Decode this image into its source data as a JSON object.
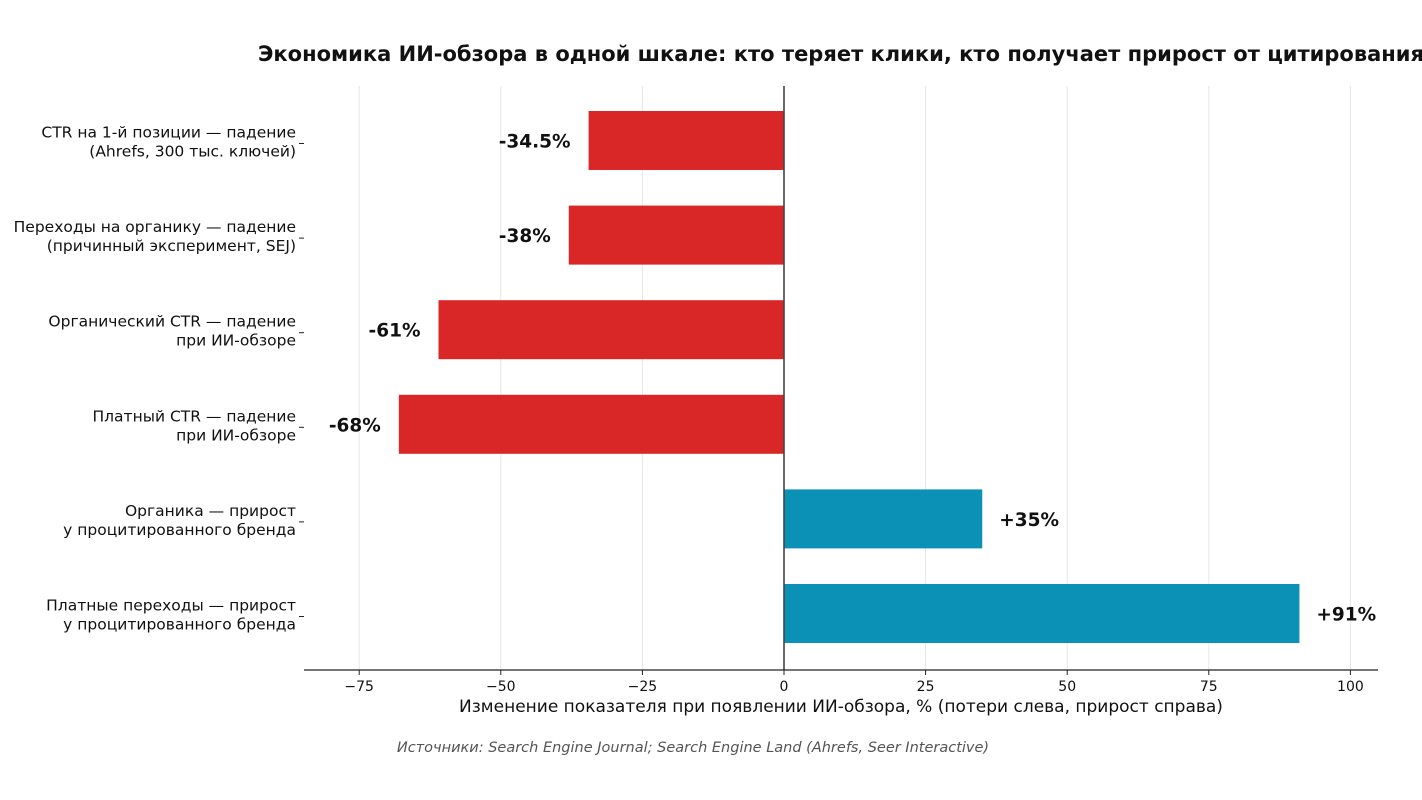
{
  "chart_data": {
    "type": "bar",
    "orientation": "horizontal",
    "title": "Экономика ИИ-обзора в одной шкале: кто теряет клики, кто получает прирост от цитирования",
    "xlabel": "Изменение показателя при появлении ИИ-обзора, %  (потери слева, прирост справа)",
    "ylabel": "",
    "source": "Источники: Search Engine Journal; Search Engine Land (Ahrefs, Seer Interactive)",
    "xlim": [
      -85,
      105
    ],
    "xticks": [
      -75,
      -50,
      -25,
      0,
      25,
      50,
      75,
      100
    ],
    "xtick_labels": [
      "−75",
      "−50",
      "−25",
      "0",
      "25",
      "50",
      "75",
      "100"
    ],
    "grid": "vertical",
    "categories": [
      [
        "CTR на 1-й позиции — падение",
        "(Ahrefs, 300 тыс. ключей)"
      ],
      [
        "Переходы на органику — падение",
        "(причинный эксперимент, SEJ)"
      ],
      [
        "Органический CTR — падение",
        "при ИИ-обзоре"
      ],
      [
        "Платный CTR — падение",
        "при ИИ-обзоре"
      ],
      [
        "Органика — прирост",
        "у процитированного бренда"
      ],
      [
        "Платные переходы — прирост",
        "у процитированного бренда"
      ]
    ],
    "values": [
      -34.5,
      -38,
      -61,
      -68,
      35,
      91
    ],
    "data_labels": [
      "-34.5%",
      "-38%",
      "-61%",
      "-68%",
      "+35%",
      "+91%"
    ],
    "colors": {
      "negative": "#d92626",
      "positive": "#0a91b5",
      "zero_line": "#444444",
      "grid": "#e6e6e6"
    }
  }
}
